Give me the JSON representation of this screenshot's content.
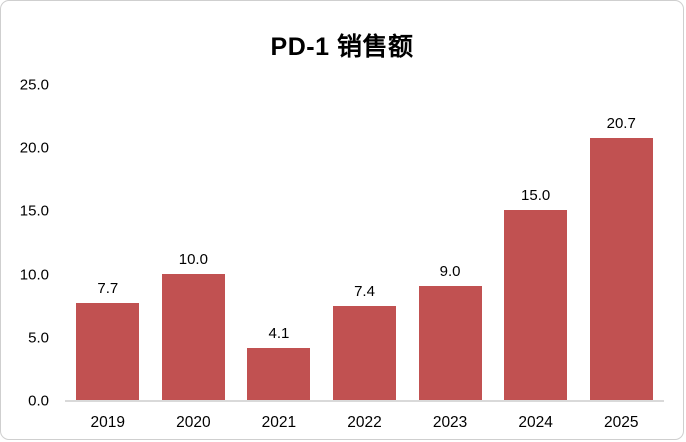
{
  "chart_data": {
    "type": "bar",
    "title": "PD-1 销售额",
    "categories": [
      "2019",
      "2020",
      "2021",
      "2022",
      "2023",
      "2024",
      "2025"
    ],
    "values": [
      7.7,
      10.0,
      4.1,
      7.4,
      9.0,
      15.0,
      20.7
    ],
    "value_labels": [
      "7.7",
      "10.0",
      "4.1",
      "7.4",
      "9.0",
      "15.0",
      "20.7"
    ],
    "xlabel": "",
    "ylabel": "",
    "ylim": [
      0,
      25
    ],
    "yticks": [
      0,
      5,
      10,
      15,
      20,
      25
    ],
    "ytick_labels": [
      "0.0",
      "5.0",
      "10.0",
      "15.0",
      "20.0",
      "25.0"
    ],
    "grid": false,
    "legend": "none",
    "bar_color": "#C15151",
    "axis_line_color": "#D9D9D9",
    "text_color": "#000000",
    "background_color": "#FFFFFF"
  }
}
